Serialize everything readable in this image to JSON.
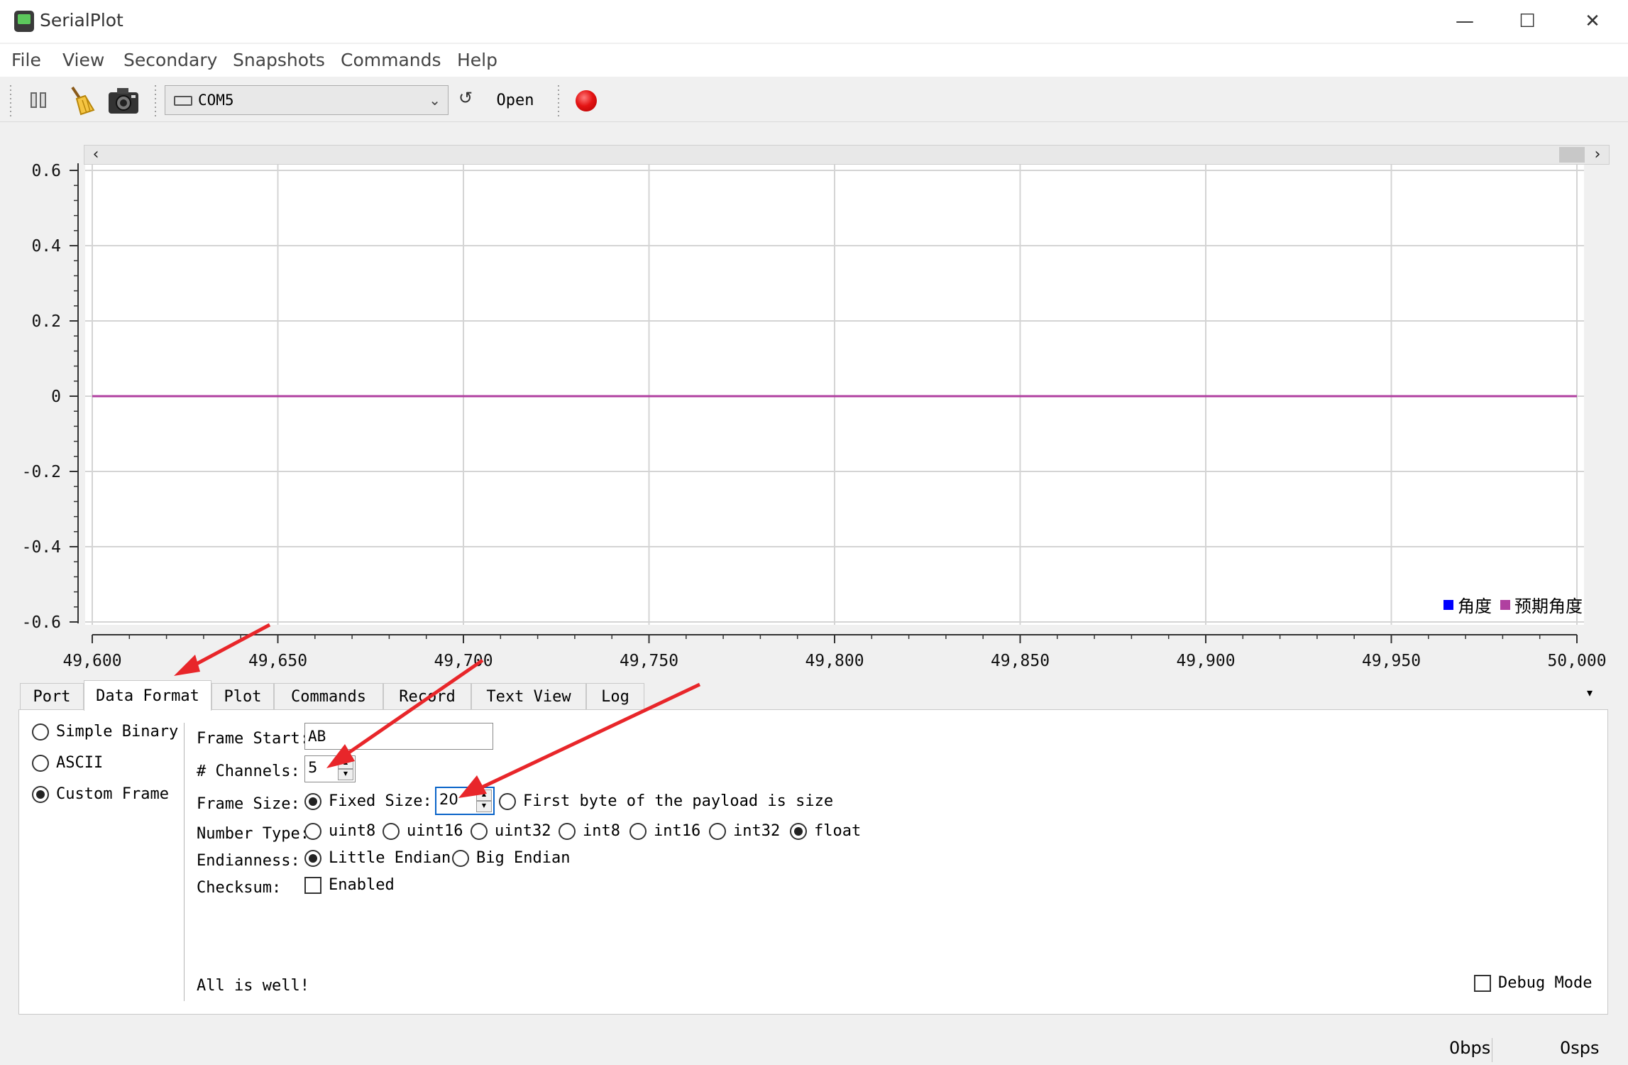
{
  "window": {
    "title": "SerialPlot",
    "minimize_glyph": "—",
    "maximize_glyph": "☐",
    "close_glyph": "✕"
  },
  "menu": [
    "File",
    "View",
    "Secondary",
    "Snapshots",
    "Commands",
    "Help"
  ],
  "toolbar": {
    "pause_icon": "pause-icon",
    "clear_icon": "broom-icon",
    "snapshot_icon": "camera-icon",
    "port_value": "COM5",
    "reload_glyph": "↺",
    "open_label": "Open",
    "record_icon": "record-icon"
  },
  "chart_data": {
    "type": "line",
    "xlim": [
      49600,
      50000
    ],
    "ylim": [
      -0.6,
      0.6
    ],
    "x_ticks": [
      "49,600",
      "49,650",
      "49,700",
      "49,750",
      "49,800",
      "49,850",
      "49,900",
      "49,950",
      "50,000"
    ],
    "y_ticks": [
      "0.6",
      "0.4",
      "0.2",
      "0",
      "-0.2",
      "-0.4",
      "-0.6"
    ],
    "grid": true,
    "legend_position": "bottom-right",
    "series": [
      {
        "name": "角度",
        "color": "#0000ff",
        "x": [
          49600,
          50000
        ],
        "y": [
          0,
          0
        ]
      },
      {
        "name": "预期角度",
        "color": "#b040a0",
        "x": [
          49600,
          50000
        ],
        "y": [
          0,
          0
        ]
      }
    ]
  },
  "tabs": [
    "Port",
    "Data Format",
    "Plot",
    "Commands",
    "Record",
    "Text View",
    "Log"
  ],
  "active_tab": "Data Format",
  "tab_menu_glyph": "▾",
  "data_format": {
    "modes": [
      {
        "label": "Simple Binary",
        "checked": false
      },
      {
        "label": "ASCII",
        "checked": false
      },
      {
        "label": "Custom Frame",
        "checked": true
      }
    ],
    "frame_start_label": "Frame Start:",
    "frame_start_value": "AB",
    "channels_label": "# Channels:",
    "channels_value": "5",
    "frame_size_label": "Frame Size:",
    "fixed_size_label": "Fixed Size:",
    "fixed_size_value": "20",
    "first_byte_label": "First byte of the payload is size",
    "number_type_label": "Number Type:",
    "number_types": [
      {
        "label": "uint8",
        "checked": false
      },
      {
        "label": "uint16",
        "checked": false
      },
      {
        "label": "uint32",
        "checked": false
      },
      {
        "label": "int8",
        "checked": false
      },
      {
        "label": "int16",
        "checked": false
      },
      {
        "label": "int32",
        "checked": false
      },
      {
        "label": "float",
        "checked": true
      }
    ],
    "endianness_label": "Endianness:",
    "little_endian_label": "Little Endian",
    "big_endian_label": "Big Endian",
    "checksum_label": "Checksum:",
    "checksum_enabled_label": "Enabled",
    "status_message": "All is well!",
    "debug_mode_label": "Debug Mode"
  },
  "status": {
    "bps": "0bps",
    "sps": "0sps"
  },
  "colors": {
    "annotation_arrow": "#e8262a",
    "focus_border": "#0a64c8"
  }
}
